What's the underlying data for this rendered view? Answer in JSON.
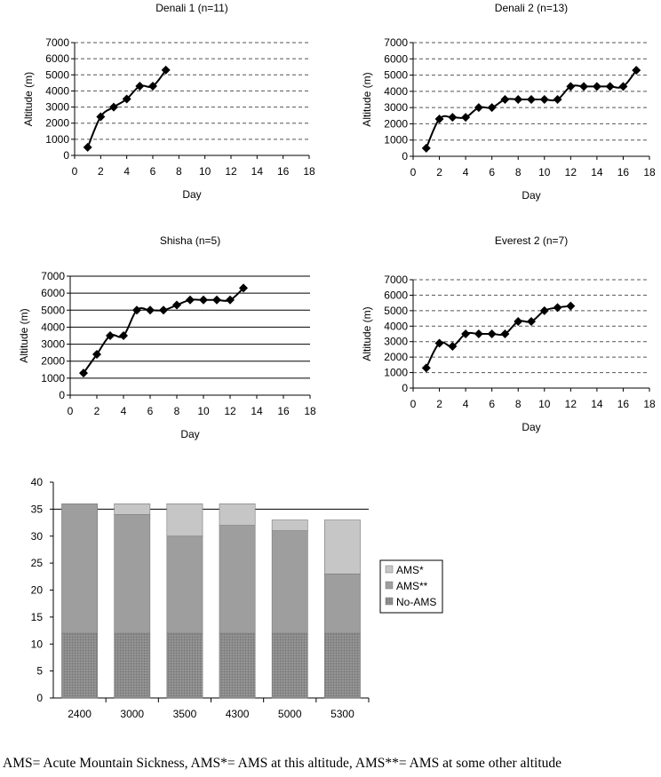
{
  "chart_data": [
    {
      "type": "line",
      "title": "Denali 1 (n=11)",
      "xlabel": "Day",
      "ylabel": "Altitude (m)",
      "xlim": [
        0,
        18
      ],
      "ylim": [
        0,
        7000
      ],
      "x_ticks": [
        "0",
        "2",
        "4",
        "6",
        "8",
        "10",
        "12",
        "14",
        "16",
        "18"
      ],
      "y_ticks": [
        "0",
        "1000",
        "2000",
        "3000",
        "4000",
        "5000",
        "6000",
        "7000"
      ],
      "grid": "dashed",
      "x": [
        1,
        2,
        3,
        4,
        5,
        6,
        7
      ],
      "y": [
        500,
        2400,
        3000,
        3500,
        4300,
        4300,
        5300
      ]
    },
    {
      "type": "line",
      "title": "Denali 2 (n=13)",
      "xlabel": "Day",
      "ylabel": "Altitude (m)",
      "xlim": [
        0,
        18
      ],
      "ylim": [
        0,
        7000
      ],
      "x_ticks": [
        "0",
        "2",
        "4",
        "6",
        "8",
        "10",
        "12",
        "14",
        "16",
        "18"
      ],
      "y_ticks": [
        "0",
        "1000",
        "2000",
        "3000",
        "4000",
        "5000",
        "6000",
        "7000"
      ],
      "grid": "dashed",
      "x": [
        1,
        2,
        3,
        4,
        5,
        6,
        7,
        8,
        9,
        10,
        11,
        12,
        13,
        14,
        15,
        16,
        17
      ],
      "y": [
        500,
        2300,
        2400,
        2400,
        3000,
        3000,
        3500,
        3500,
        3500,
        3500,
        3500,
        4300,
        4300,
        4300,
        4300,
        4300,
        5300
      ]
    },
    {
      "type": "line",
      "title": "Shisha (n=5)",
      "xlabel": "Day",
      "ylabel": "Altitude (m)",
      "xlim": [
        0,
        18
      ],
      "ylim": [
        0,
        7000
      ],
      "x_ticks": [
        "0",
        "2",
        "4",
        "6",
        "8",
        "10",
        "12",
        "14",
        "16",
        "18"
      ],
      "y_ticks": [
        "0",
        "1000",
        "2000",
        "3000",
        "4000",
        "5000",
        "6000",
        "7000"
      ],
      "grid": "solid",
      "x": [
        1,
        2,
        3,
        4,
        5,
        6,
        7,
        8,
        9,
        10,
        11,
        12,
        13
      ],
      "y": [
        1300,
        2400,
        3500,
        3500,
        5000,
        5000,
        5000,
        5300,
        5600,
        5600,
        5600,
        5600,
        6300
      ]
    },
    {
      "type": "line",
      "title": "Everest 2 (n=7)",
      "xlabel": "Day",
      "ylabel": "Altitude (m)",
      "xlim": [
        0,
        18
      ],
      "ylim": [
        0,
        7000
      ],
      "x_ticks": [
        "0",
        "2",
        "4",
        "6",
        "8",
        "10",
        "12",
        "14",
        "16",
        "18"
      ],
      "y_ticks": [
        "0",
        "1000",
        "2000",
        "3000",
        "4000",
        "5000",
        "6000",
        "7000"
      ],
      "grid": "dashed",
      "x": [
        1,
        2,
        3,
        4,
        5,
        6,
        7,
        8,
        9,
        10,
        11,
        12
      ],
      "y": [
        1300,
        2900,
        2700,
        3500,
        3500,
        3500,
        3500,
        4300,
        4300,
        5000,
        5200,
        5300
      ]
    },
    {
      "type": "bar",
      "stacked": true,
      "categories": [
        "2400",
        "3000",
        "3500",
        "4300",
        "5000",
        "5300"
      ],
      "ylim": [
        0,
        40
      ],
      "y_ticks": [
        "0",
        "5",
        "10",
        "15",
        "20",
        "25",
        "30",
        "35",
        "40"
      ],
      "legend_position": "right",
      "series": [
        {
          "name": "No-AMS",
          "values": [
            12,
            12,
            12,
            12,
            12,
            12
          ],
          "color": "#8a8a8a"
        },
        {
          "name": "AMS**",
          "values": [
            24,
            22,
            18,
            20,
            19,
            11
          ],
          "color": "#9e9e9e"
        },
        {
          "name": "AMS*",
          "values": [
            0,
            2,
            6,
            4,
            2,
            10
          ],
          "color": "#c6c6c6"
        }
      ],
      "legend_order": [
        "AMS*",
        "AMS**",
        "No-AMS"
      ]
    }
  ],
  "caption": "AMS= Acute Mountain Sickness, AMS*= AMS at this altitude, AMS**= AMS at some other altitude"
}
